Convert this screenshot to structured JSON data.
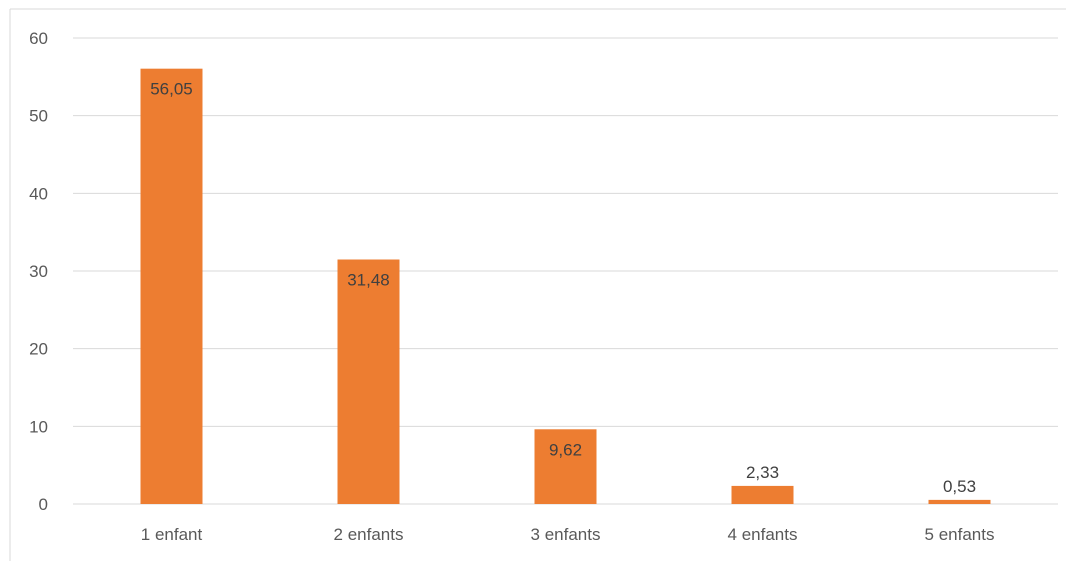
{
  "chart_data": {
    "type": "bar",
    "categories": [
      "1 enfant",
      "2 enfants",
      "3 enfants",
      "4 enfants",
      "5 enfants"
    ],
    "values": [
      56.05,
      31.48,
      9.62,
      2.33,
      0.53
    ],
    "data_labels": [
      "56,05",
      "31,48",
      "9,62",
      "2,33",
      "0,53"
    ],
    "y_ticks": [
      "0",
      "10",
      "20",
      "30",
      "40",
      "50",
      "60"
    ],
    "ylim": [
      0,
      60
    ],
    "grid": true,
    "legend": "none",
    "bar_color": "#ED7D31",
    "title": "",
    "xlabel": "",
    "ylabel": ""
  }
}
